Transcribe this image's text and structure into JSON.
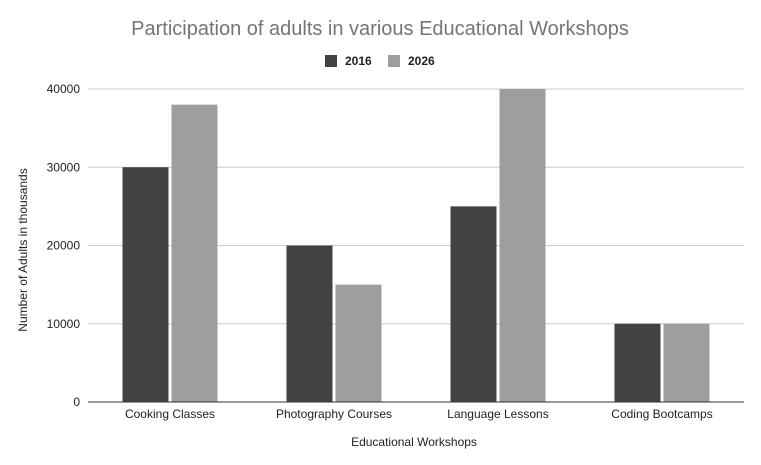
{
  "chart_data": {
    "type": "bar",
    "title": "Participation of adults in various Educational Workshops",
    "xlabel": "Educational Workshops",
    "ylabel": "Number of Adults in thousands",
    "categories": [
      "Cooking Classes",
      "Photography Courses",
      "Language Lessons",
      "Coding Bootcamps"
    ],
    "series": [
      {
        "name": "2016",
        "values": [
          30000,
          20000,
          25000,
          10000
        ],
        "color": "#424242"
      },
      {
        "name": "2026",
        "values": [
          38000,
          15000,
          40000,
          10000
        ],
        "color": "#9e9e9e"
      }
    ],
    "ylim": [
      0,
      40000
    ],
    "yticks": [
      "0",
      "10000",
      "20000",
      "30000",
      "40000"
    ],
    "grid": true,
    "legend_position": "top-center"
  }
}
